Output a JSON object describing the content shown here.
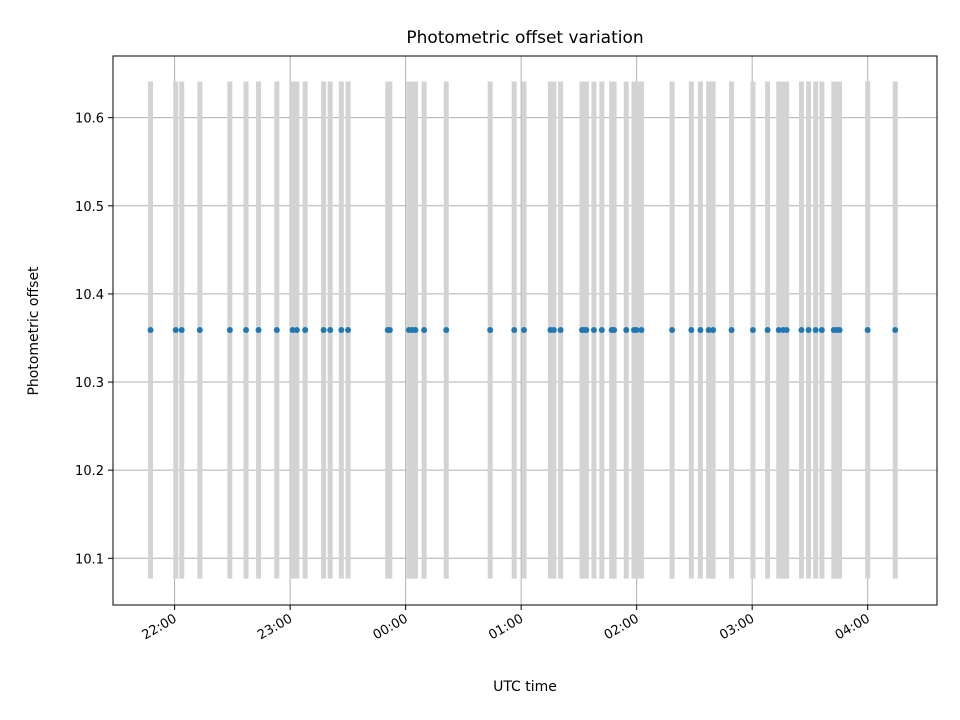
{
  "chart_data": {
    "type": "scatter",
    "title": "Photometric offset variation",
    "xlabel": "UTC time",
    "ylabel": "Photometric offset",
    "x_unit": "minutes after 22:00 UTC",
    "xlim": [
      -32,
      396
    ],
    "ylim": [
      10.047,
      10.67
    ],
    "grid": true,
    "x_ticks": [
      {
        "value": 0,
        "label": "22:00"
      },
      {
        "value": 60,
        "label": "23:00"
      },
      {
        "value": 120,
        "label": "00:00"
      },
      {
        "value": 180,
        "label": "01:00"
      },
      {
        "value": 240,
        "label": "02:00"
      },
      {
        "value": 300,
        "label": "03:00"
      },
      {
        "value": 360,
        "label": "04:00"
      }
    ],
    "y_ticks": [
      {
        "value": 10.1,
        "label": "10.1"
      },
      {
        "value": 10.2,
        "label": "10.2"
      },
      {
        "value": 10.3,
        "label": "10.3"
      },
      {
        "value": 10.4,
        "label": "10.4"
      },
      {
        "value": 10.5,
        "label": "10.5"
      },
      {
        "value": 10.6,
        "label": "10.6"
      }
    ],
    "band_range": [
      10.077,
      10.641
    ],
    "band_color": "#d3d3d3",
    "point_color": "#1f77b4",
    "series": [
      {
        "name": "Photometric offset",
        "x": [
          -12.5,
          0.6,
          3.7,
          13.1,
          28.7,
          37.1,
          43.6,
          53.1,
          61.3,
          63.5,
          67.8,
          77.4,
          80.8,
          86.6,
          90.1,
          110.7,
          111.8,
          121.7,
          123.3,
          125.1,
          129.6,
          141.1,
          163.9,
          176.4,
          181.5,
          195.2,
          197.0,
          200.5,
          211.6,
          212.7,
          213.9,
          217.8,
          221.9,
          227.0,
          228.3,
          234.6,
          238.6,
          239.9,
          242.5,
          258.4,
          268.4,
          273.1,
          277.4,
          279.7,
          289.3,
          300.4,
          308.0,
          313.8,
          316.1,
          317.9,
          325.6,
          329.3,
          333.0,
          336.2,
          342.4,
          343.9,
          345.4,
          360.0,
          374.3
        ],
        "y": [
          10.359,
          10.359,
          10.359,
          10.359,
          10.359,
          10.359,
          10.359,
          10.359,
          10.359,
          10.359,
          10.359,
          10.359,
          10.359,
          10.359,
          10.359,
          10.359,
          10.359,
          10.359,
          10.359,
          10.359,
          10.359,
          10.359,
          10.359,
          10.359,
          10.359,
          10.359,
          10.359,
          10.359,
          10.359,
          10.359,
          10.359,
          10.359,
          10.359,
          10.359,
          10.359,
          10.359,
          10.359,
          10.359,
          10.359,
          10.359,
          10.359,
          10.359,
          10.359,
          10.359,
          10.359,
          10.359,
          10.359,
          10.359,
          10.359,
          10.359,
          10.359,
          10.359,
          10.359,
          10.359,
          10.359,
          10.359,
          10.359,
          10.359,
          10.359
        ]
      }
    ]
  }
}
